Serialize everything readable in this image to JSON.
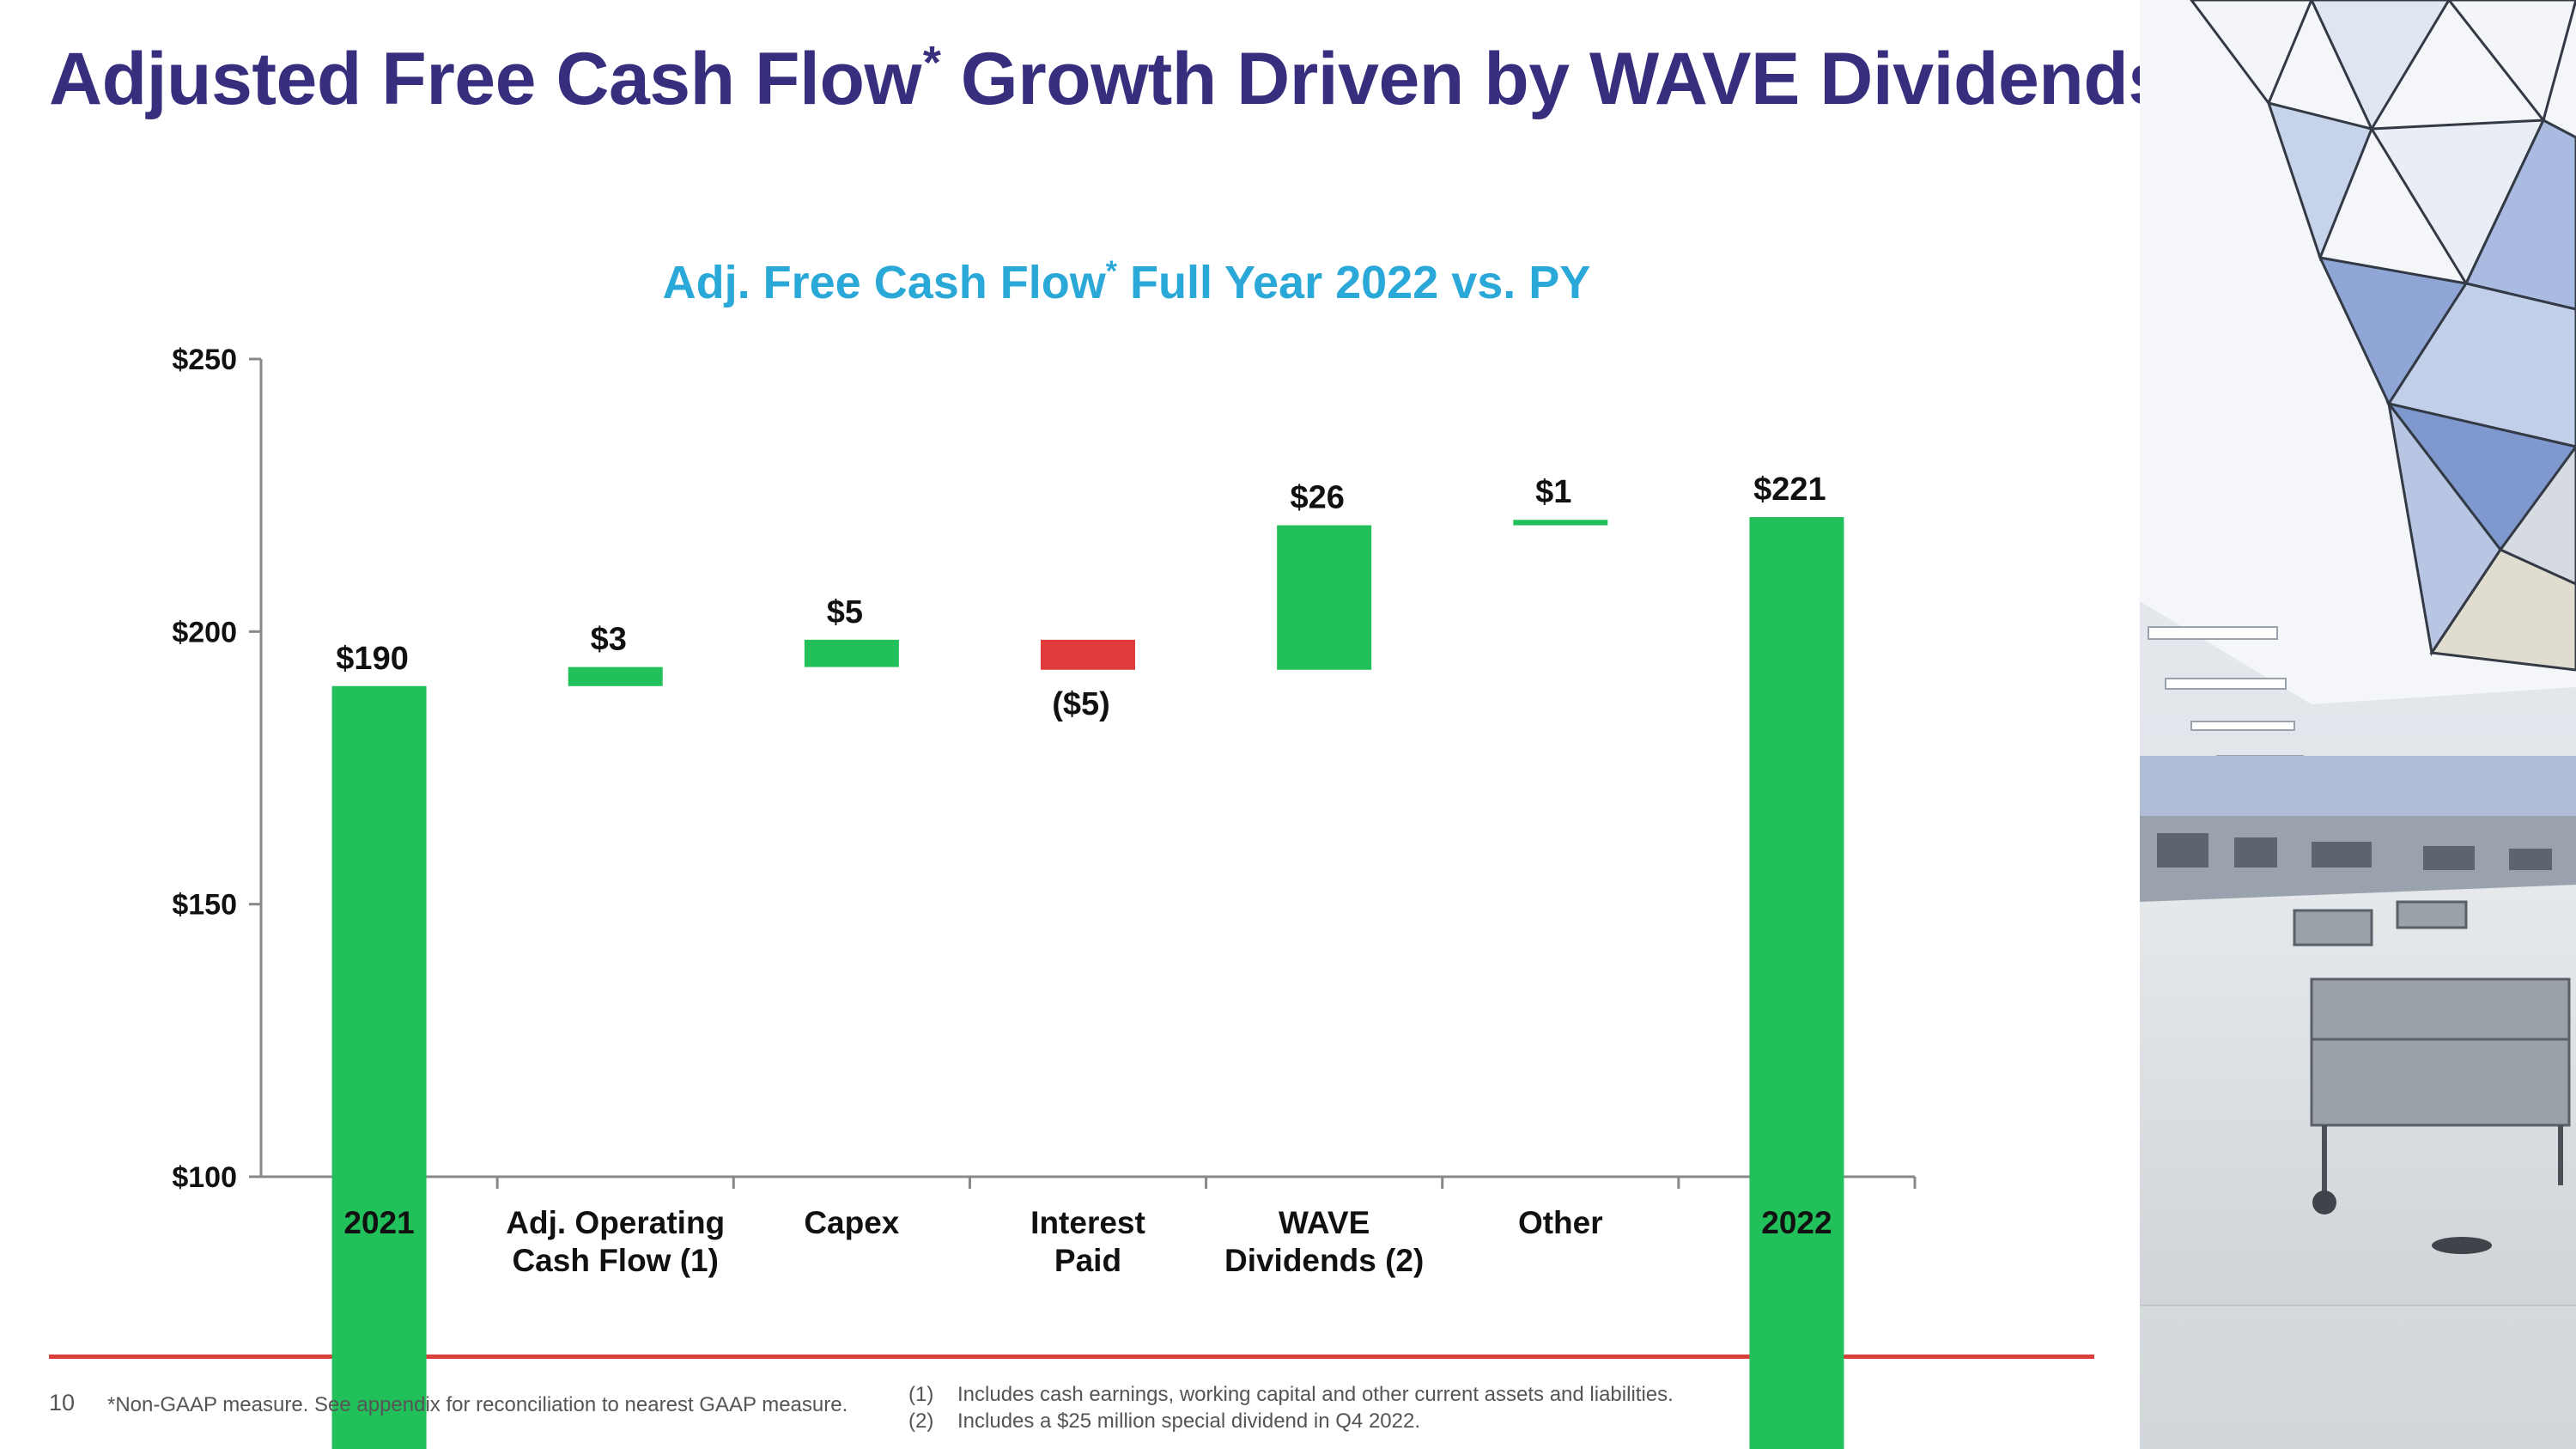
{
  "slide": {
    "title": "Adjusted Free Cash Flow",
    "title_sup": "*",
    "title_rest": " Growth Driven by WAVE Dividends",
    "page_number": "10",
    "footnote_main": "*Non-GAAP measure. See appendix for reconciliation to nearest GAAP measure.",
    "footnotes": [
      {
        "num": "(1)",
        "text": "Includes cash earnings, working capital and other current assets and liabilities."
      },
      {
        "num": "(2)",
        "text": "Includes a $25 million special dividend in Q4 2022."
      }
    ]
  },
  "colors": {
    "title": "#372f7e",
    "chart_title": "#2aa8d8",
    "increase": "#22c05a",
    "decrease": "#e03c3c",
    "total": "#22c05a",
    "divider": "#d9403a",
    "axis": "#888888"
  },
  "photo": {
    "icon": "lab-interior-photo"
  },
  "chart_data": {
    "type": "bar",
    "subtype": "waterfall",
    "title": "Adj. Free Cash Flow",
    "title_sup": "*",
    "title_rest": " Full Year 2022 vs. PY",
    "ylim": [
      100,
      250
    ],
    "yticks": [
      100,
      150,
      200,
      250
    ],
    "ytick_labels": [
      "$100",
      "$150",
      "$200",
      "$250"
    ],
    "grid": false,
    "legend": "none",
    "bars": [
      {
        "category": [
          "2021"
        ],
        "kind": "total",
        "start": 0,
        "end": 190,
        "label": "$190",
        "label_pos": "above"
      },
      {
        "category": [
          "Adj. Operating",
          "Cash Flow (1)"
        ],
        "kind": "increase",
        "start": 190,
        "end": 193.5,
        "label": "$3",
        "label_pos": "above"
      },
      {
        "category": [
          "Capex"
        ],
        "kind": "increase",
        "start": 193.5,
        "end": 198.5,
        "label": "$5",
        "label_pos": "above"
      },
      {
        "category": [
          "Interest",
          "Paid"
        ],
        "kind": "decrease",
        "start": 198.5,
        "end": 193,
        "label": "($5)",
        "label_pos": "below"
      },
      {
        "category": [
          "WAVE",
          "Dividends (2)"
        ],
        "kind": "increase",
        "start": 193,
        "end": 219.5,
        "label": "$26",
        "label_pos": "above"
      },
      {
        "category": [
          "Other"
        ],
        "kind": "increase",
        "start": 219.5,
        "end": 220.5,
        "label": "$1",
        "label_pos": "above"
      },
      {
        "category": [
          "2022"
        ],
        "kind": "total",
        "start": 0,
        "end": 221,
        "label": "$221",
        "label_pos": "above"
      }
    ]
  }
}
